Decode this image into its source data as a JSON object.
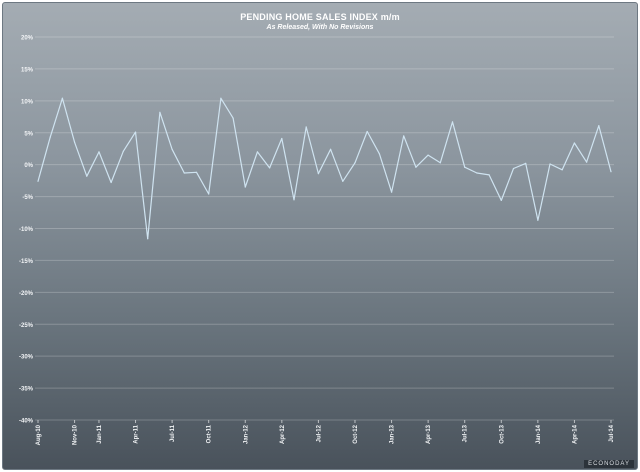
{
  "chart_data": {
    "type": "line",
    "title": "PENDING HOME SALES INDEX m/m",
    "subtitle": "As Released, With No Revisions",
    "xlabel": "",
    "ylabel": "",
    "ylim": [
      -40,
      20
    ],
    "y_ticks": [
      "20%",
      "15%",
      "10%",
      "5%",
      "0%",
      "-5%",
      "-10%",
      "-15%",
      "-20%",
      "-25%",
      "-30%",
      "-35%",
      "-40%"
    ],
    "grid": true,
    "x_ticks": [
      "Aug-10",
      "Nov-10",
      "Jan-11",
      "Apr-11",
      "Jul-11",
      "Oct-11",
      "Jan-12",
      "Apr-12",
      "Jul-12",
      "Oct-12",
      "Jan-13",
      "Apr-13",
      "Jul-13",
      "Oct-13",
      "Jan-14",
      "Apr-14",
      "Jul-14"
    ],
    "series": [
      {
        "name": "",
        "color": "#cfe3f0",
        "x": [
          "Aug-10",
          "Sep-10",
          "Oct-10",
          "Nov-10",
          "Dec-10",
          "Jan-11",
          "Feb-11",
          "Mar-11",
          "Apr-11",
          "May-11",
          "Jun-11",
          "Jul-11",
          "Aug-11",
          "Sep-11",
          "Oct-11",
          "Nov-11",
          "Dec-11",
          "Jan-12",
          "Feb-12",
          "Mar-12",
          "Apr-12",
          "May-12",
          "Jun-12",
          "Jul-12",
          "Aug-12",
          "Sep-12",
          "Oct-12",
          "Nov-12",
          "Dec-12",
          "Jan-13",
          "Feb-13",
          "Mar-13",
          "Apr-13",
          "May-13",
          "Jun-13",
          "Jul-13",
          "Aug-13",
          "Sep-13",
          "Oct-13",
          "Nov-13",
          "Dec-13",
          "Jan-14",
          "Feb-14",
          "Mar-14",
          "Apr-14",
          "May-14",
          "Jun-14",
          "Jul-14"
        ],
        "values": [
          -2.6,
          4.3,
          10.4,
          3.5,
          -1.8,
          2.0,
          -2.8,
          2.1,
          5.1,
          -11.6,
          8.2,
          2.4,
          -1.3,
          -1.2,
          -4.6,
          10.4,
          7.3,
          -3.5,
          2.0,
          -0.5,
          4.1,
          -5.5,
          5.9,
          -1.4,
          2.4,
          -2.6,
          0.3,
          5.2,
          1.7,
          -4.3,
          4.5,
          -0.4,
          1.5,
          0.3,
          6.7,
          -0.4,
          -1.3,
          -1.6,
          -5.6,
          -0.6,
          0.2,
          -8.7,
          0.1,
          -0.8,
          3.4,
          0.4,
          6.1,
          -1.1
        ]
      }
    ]
  },
  "watermark": "ECONODAY"
}
